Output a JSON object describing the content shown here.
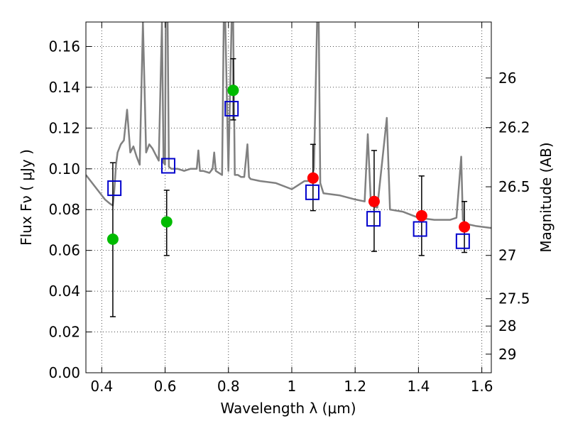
{
  "chart_data": {
    "type": "scatter",
    "xlabel": "Wavelength  λ (μm)",
    "ylabel": "Flux  Fν  ( μJy )",
    "y2label": "Magnitude (AB)",
    "xlim": [
      0.35,
      1.63
    ],
    "ylim": [
      0.0,
      0.172
    ],
    "grid": true,
    "x_ticks": [
      0.4,
      0.6,
      0.8,
      1.0,
      1.2,
      1.4,
      1.6
    ],
    "x_tick_labels": [
      "0.4",
      "0.6",
      "0.8",
      "1",
      "1.2",
      "1.4",
      "1.6"
    ],
    "y_ticks": [
      0.0,
      0.02,
      0.04,
      0.06,
      0.08,
      0.1,
      0.12,
      0.14,
      0.16
    ],
    "y_tick_labels": [
      "0.00",
      "0.02",
      "0.04",
      "0.06",
      "0.08",
      "0.10",
      "0.12",
      "0.14",
      "0.16"
    ],
    "y2_ticks": [
      26,
      26.2,
      26.5,
      27,
      27.5,
      28,
      29
    ],
    "y2_tick_labels": [
      "26",
      "26.2",
      "26.5",
      "27",
      "27.5",
      "28",
      "29"
    ],
    "series": [
      {
        "marker": "line",
        "color": "#808080",
        "x": [
          0.35,
          0.38,
          0.41,
          0.425,
          0.435,
          0.44,
          0.445,
          0.45,
          0.46,
          0.47,
          0.48,
          0.49,
          0.5,
          0.51,
          0.52,
          0.53,
          0.54,
          0.55,
          0.56,
          0.57,
          0.58,
          0.59,
          0.595,
          0.6,
          0.602,
          0.605,
          0.608,
          0.612,
          0.62,
          0.64,
          0.66,
          0.68,
          0.7,
          0.705,
          0.71,
          0.72,
          0.74,
          0.75,
          0.755,
          0.76,
          0.78,
          0.785,
          0.79,
          0.8,
          0.81,
          0.815,
          0.82,
          0.83,
          0.84,
          0.85,
          0.86,
          0.865,
          0.87,
          0.9,
          0.95,
          1.0,
          1.02,
          1.04,
          1.06,
          1.07,
          1.08,
          1.085,
          1.09,
          1.1,
          1.15,
          1.2,
          1.23,
          1.24,
          1.25,
          1.27,
          1.3,
          1.31,
          1.35,
          1.4,
          1.45,
          1.5,
          1.52,
          1.535,
          1.54,
          1.545,
          1.55,
          1.58,
          1.63
        ],
        "y": [
          0.097,
          0.091,
          0.085,
          0.083,
          0.082,
          0.09,
          0.102,
          0.108,
          0.112,
          0.114,
          0.129,
          0.108,
          0.111,
          0.106,
          0.102,
          0.172,
          0.108,
          0.112,
          0.11,
          0.107,
          0.104,
          0.172,
          0.103,
          0.102,
          0.172,
          0.172,
          0.172,
          0.101,
          0.1,
          0.1,
          0.099,
          0.1,
          0.1,
          0.109,
          0.099,
          0.099,
          0.098,
          0.1,
          0.108,
          0.099,
          0.097,
          0.172,
          0.172,
          0.099,
          0.172,
          0.172,
          0.097,
          0.097,
          0.096,
          0.096,
          0.112,
          0.096,
          0.095,
          0.094,
          0.093,
          0.09,
          0.092,
          0.094,
          0.094,
          0.1,
          0.172,
          0.172,
          0.093,
          0.088,
          0.087,
          0.085,
          0.084,
          0.117,
          0.082,
          0.081,
          0.125,
          0.08,
          0.079,
          0.076,
          0.075,
          0.075,
          0.076,
          0.106,
          0.075,
          0.074,
          0.073,
          0.072,
          0.071
        ]
      },
      {
        "marker": "circle",
        "color": "#00bb00",
        "x": [
          0.435,
          0.605,
          0.815
        ],
        "y": [
          0.0655,
          0.074,
          0.1385
        ],
        "yerr_low": [
          0.0275,
          0.0575,
          0.124
        ],
        "yerr_high": [
          0.103,
          0.0895,
          0.154
        ]
      },
      {
        "marker": "circle",
        "color": "#ff0000",
        "x": [
          1.067,
          1.26,
          1.41,
          1.545
        ],
        "y": [
          0.0955,
          0.084,
          0.077,
          0.0715
        ],
        "yerr_low": [
          0.0795,
          0.0595,
          0.0575,
          0.059
        ],
        "yerr_high": [
          0.112,
          0.109,
          0.0965,
          0.084
        ]
      },
      {
        "marker": "open-square",
        "color": "#0000cc",
        "x": [
          0.44,
          0.61,
          0.81,
          1.065,
          1.258,
          1.405,
          1.54
        ],
        "y": [
          0.0905,
          0.1015,
          0.1295,
          0.0885,
          0.0755,
          0.0705,
          0.0645
        ]
      }
    ]
  }
}
